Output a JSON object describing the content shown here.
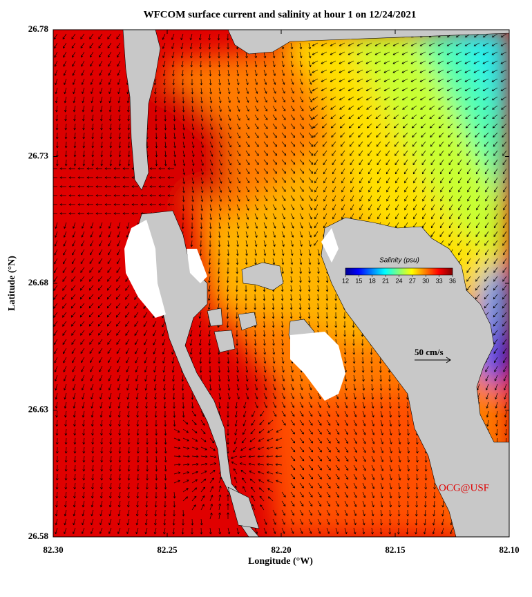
{
  "title": "WFCOM surface current and salinity at hour 1 on 12/24/2021",
  "x_axis": {
    "label": "Longitude (°W)",
    "lim": [
      82.3,
      82.1
    ],
    "ticks": [
      {
        "value": 82.3,
        "label": "82.30"
      },
      {
        "value": 82.25,
        "label": "82.25"
      },
      {
        "value": 82.2,
        "label": "82.20"
      },
      {
        "value": 82.15,
        "label": "82.15"
      },
      {
        "value": 82.1,
        "label": "82.10"
      }
    ]
  },
  "y_axis": {
    "label": "Latitude (°N)",
    "lim": [
      26.58,
      26.78
    ],
    "ticks": [
      26.78,
      26.73,
      26.68,
      26.63,
      26.58
    ]
  },
  "colorbar": {
    "title": "Salinity (psu)",
    "lim": [
      12,
      36
    ],
    "ticks": [
      12,
      15,
      18,
      21,
      24,
      27,
      30,
      33,
      36
    ]
  },
  "scale_label": "50 cm/s",
  "credit": "OCG@USF"
}
